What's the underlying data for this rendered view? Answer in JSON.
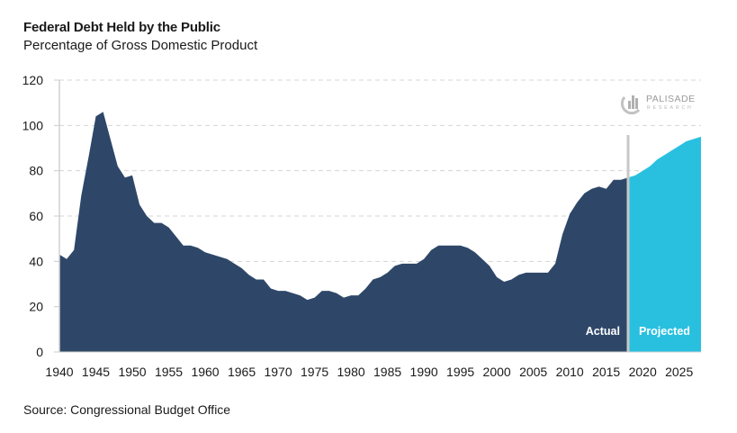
{
  "header": {
    "title": "Federal Debt Held by the Public",
    "subtitle": "Percentage of Gross Domestic Product"
  },
  "footer": {
    "source": "Source: Congressional Budget Office"
  },
  "logo": {
    "name": "PALISADE",
    "sub": "RESEARCH",
    "icon": "palisade-logo-icon"
  },
  "colors": {
    "actual": "#2e4769",
    "projected": "#29c0e0",
    "divider": "#c8c8c8",
    "grid": "#d4d4d4"
  },
  "chart_data": {
    "type": "area",
    "title": "Federal Debt Held by the Public",
    "subtitle": "Percentage of Gross Domestic Product",
    "xlabel": "",
    "ylabel": "",
    "xlim": [
      1940,
      2028
    ],
    "ylim": [
      0,
      120
    ],
    "yticks": [
      0,
      20,
      40,
      60,
      80,
      100,
      120
    ],
    "xticks": [
      1940,
      1945,
      1950,
      1955,
      1960,
      1965,
      1970,
      1975,
      1980,
      1985,
      1990,
      1995,
      2000,
      2005,
      2010,
      2015,
      2020,
      2025
    ],
    "grid": "horizontal dashed",
    "annotations": [
      "Actual",
      "Projected"
    ],
    "divider_year": 2018,
    "series": [
      {
        "name": "Actual",
        "x": [
          1940,
          1941,
          1942,
          1943,
          1944,
          1945,
          1946,
          1947,
          1948,
          1949,
          1950,
          1951,
          1952,
          1953,
          1954,
          1955,
          1956,
          1957,
          1958,
          1959,
          1960,
          1961,
          1962,
          1963,
          1964,
          1965,
          1966,
          1967,
          1968,
          1969,
          1970,
          1971,
          1972,
          1973,
          1974,
          1975,
          1976,
          1977,
          1978,
          1979,
          1980,
          1981,
          1982,
          1983,
          1984,
          1985,
          1986,
          1987,
          1988,
          1989,
          1990,
          1991,
          1992,
          1993,
          1994,
          1995,
          1996,
          1997,
          1998,
          1999,
          2000,
          2001,
          2002,
          2003,
          2004,
          2005,
          2006,
          2007,
          2008,
          2009,
          2010,
          2011,
          2012,
          2013,
          2014,
          2015,
          2016,
          2017,
          2018
        ],
        "values": [
          43,
          41,
          45,
          69,
          86,
          104,
          106,
          94,
          82,
          77,
          78,
          65,
          60,
          57,
          57,
          55,
          51,
          47,
          47,
          46,
          44,
          43,
          42,
          41,
          39,
          37,
          34,
          32,
          32,
          28,
          27,
          27,
          26,
          25,
          23,
          24,
          27,
          27,
          26,
          24,
          25,
          25,
          28,
          32,
          33,
          35,
          38,
          39,
          39,
          39,
          41,
          45,
          47,
          47,
          47,
          47,
          46,
          44,
          41,
          38,
          33,
          31,
          32,
          34,
          35,
          35,
          35,
          35,
          39,
          52,
          61,
          66,
          70,
          72,
          73,
          72,
          76,
          76,
          77
        ]
      },
      {
        "name": "Projected",
        "x": [
          2018,
          2019,
          2020,
          2021,
          2022,
          2023,
          2024,
          2025,
          2026,
          2027,
          2028
        ],
        "values": [
          77,
          78,
          80,
          82,
          85,
          87,
          89,
          91,
          93,
          94,
          95
        ]
      }
    ]
  }
}
